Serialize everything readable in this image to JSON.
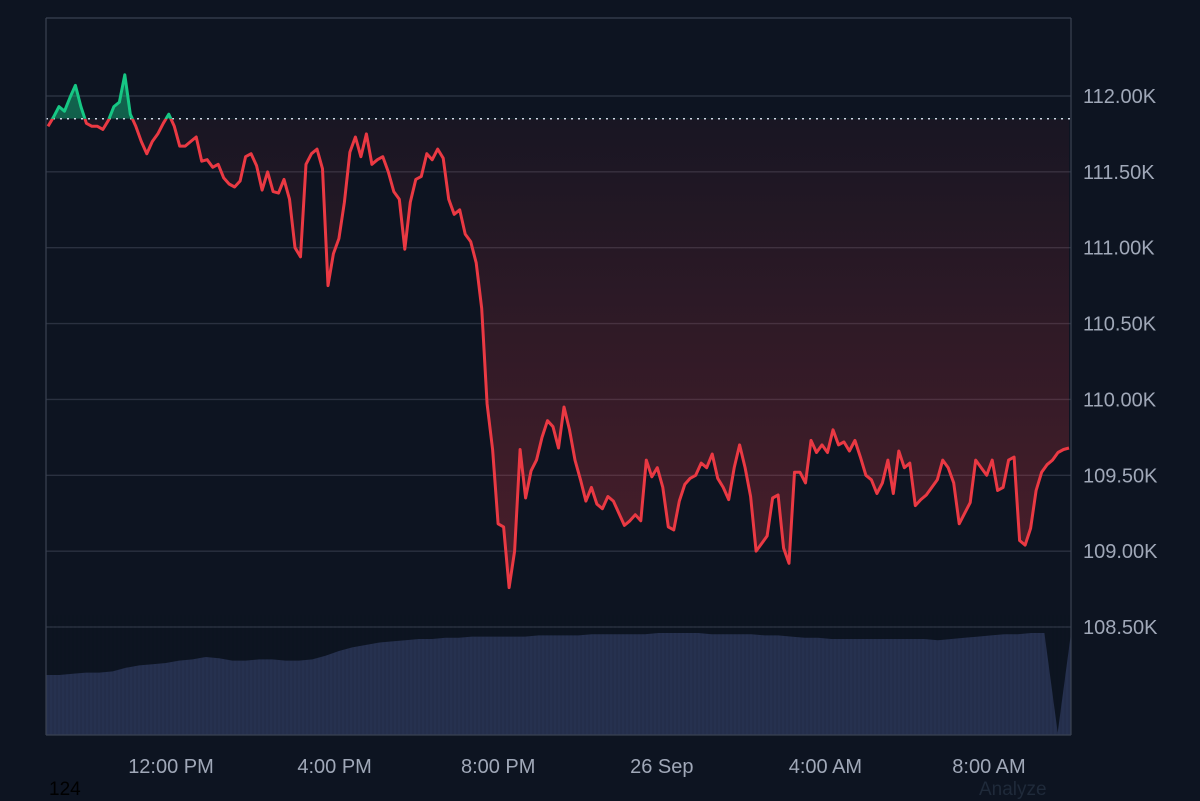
{
  "colors": {
    "background": "#0d1421",
    "grid": "#2a3140",
    "axis": "#3a4252",
    "down": "#ea3943",
    "up": "#16c784",
    "volume": "#26314f",
    "tick_text": "#a0a8b8"
  },
  "footer": {
    "left_text": "124",
    "right_link": "Analyze"
  },
  "chart_data": {
    "type": "line",
    "series": [
      {
        "values": [
          111.8,
          111.86,
          111.93,
          111.9,
          111.99,
          112.07,
          111.93,
          111.82,
          111.8,
          111.8,
          111.78,
          111.84,
          111.93,
          111.96,
          112.14,
          111.88,
          111.8,
          111.7,
          111.62,
          111.7,
          111.75,
          111.82,
          111.88,
          111.8,
          111.67,
          111.67,
          111.7,
          111.73,
          111.57,
          111.58,
          111.53,
          111.55,
          111.46,
          111.42,
          111.4,
          111.44,
          111.6,
          111.62,
          111.54,
          111.38,
          111.5,
          111.37,
          111.36,
          111.45,
          111.32,
          111.0,
          110.94,
          111.55,
          111.62,
          111.65,
          111.52,
          110.75,
          110.96,
          111.06,
          111.3,
          111.63,
          111.73,
          111.6,
          111.75,
          111.55,
          111.58,
          111.6,
          111.5,
          111.37,
          111.32,
          110.99,
          111.3,
          111.45,
          111.47,
          111.62,
          111.58,
          111.65,
          111.59,
          111.32,
          111.22,
          111.25,
          111.09,
          111.04,
          110.9,
          110.6,
          109.97,
          109.67,
          109.18,
          109.16,
          108.76,
          109.0,
          109.67,
          109.35,
          109.53,
          109.6,
          109.75,
          109.86,
          109.82,
          109.68,
          109.95,
          109.8,
          109.6,
          109.47,
          109.33,
          109.42,
          109.31,
          109.28,
          109.36,
          109.33,
          109.25,
          109.17,
          109.2,
          109.24,
          109.2,
          109.6,
          109.49,
          109.55,
          109.42,
          109.16,
          109.14,
          109.33,
          109.44,
          109.48,
          109.5,
          109.58,
          109.55,
          109.64,
          109.48,
          109.42,
          109.34,
          109.55,
          109.7,
          109.55,
          109.36,
          109.0,
          109.05,
          109.1,
          109.35,
          109.37,
          109.02,
          108.92,
          109.52,
          109.52,
          109.45,
          109.73,
          109.65,
          109.7,
          109.65,
          109.8,
          109.7,
          109.72,
          109.66,
          109.73,
          109.62,
          109.5,
          109.47,
          109.38,
          109.45,
          109.6,
          109.38,
          109.66,
          109.55,
          109.58,
          109.3,
          109.34,
          109.37,
          109.42,
          109.47,
          109.6,
          109.55,
          109.45,
          109.18,
          109.25,
          109.32,
          109.6,
          109.55,
          109.5,
          109.6,
          109.4,
          109.42,
          109.6,
          109.62,
          109.07,
          109.04,
          109.15,
          109.4,
          109.52,
          109.57,
          109.6,
          109.65,
          109.67,
          109.68
        ]
      }
    ],
    "y_ticks": [
      "112.00K",
      "111.50K",
      "111.00K",
      "110.50K",
      "110.00K",
      "109.50K",
      "109.00K",
      "108.50K"
    ],
    "y_tick_values": [
      112.0,
      111.5,
      111.0,
      110.5,
      110.0,
      109.5,
      109.0,
      108.5
    ],
    "x_ticks": [
      "12:00 PM",
      "4:00 PM",
      "8:00 PM",
      "26 Sep",
      "4:00 AM",
      "8:00 AM"
    ],
    "ylim": [
      108.5,
      112.5
    ],
    "reference_value": 111.85,
    "reference_style": "dotted",
    "volume": [
      0.5,
      0.5,
      0.51,
      0.52,
      0.52,
      0.53,
      0.56,
      0.58,
      0.59,
      0.6,
      0.62,
      0.63,
      0.65,
      0.64,
      0.62,
      0.62,
      0.63,
      0.63,
      0.62,
      0.62,
      0.63,
      0.66,
      0.7,
      0.73,
      0.75,
      0.77,
      0.78,
      0.79,
      0.8,
      0.8,
      0.81,
      0.81,
      0.82,
      0.82,
      0.82,
      0.82,
      0.82,
      0.83,
      0.83,
      0.83,
      0.83,
      0.84,
      0.84,
      0.84,
      0.84,
      0.84,
      0.85,
      0.85,
      0.85,
      0.85,
      0.84,
      0.84,
      0.84,
      0.84,
      0.83,
      0.83,
      0.82,
      0.81,
      0.81,
      0.8,
      0.8,
      0.8,
      0.8,
      0.8,
      0.8,
      0.8,
      0.8,
      0.79,
      0.8,
      0.81,
      0.82,
      0.83,
      0.84,
      0.84,
      0.85,
      0.85,
      0.02,
      0.85
    ],
    "volume_style": "area",
    "grid": true,
    "y_axis_position": "right"
  }
}
